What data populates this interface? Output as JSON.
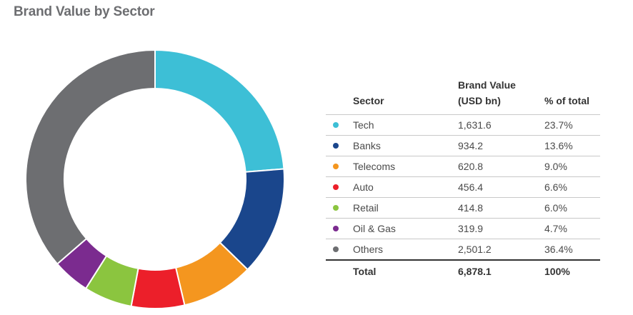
{
  "title": "Brand Value by Sector",
  "table": {
    "header_sector": "Sector",
    "header_value_line1": "Brand Value",
    "header_value_line2": "(USD bn)",
    "header_pct": "% of total",
    "rows": [
      {
        "name": "Tech",
        "value": "1,631.6",
        "pct": "23.7%",
        "color": "#3dbfd6"
      },
      {
        "name": "Banks",
        "value": "934.2",
        "pct": "13.6%",
        "color": "#1a468c"
      },
      {
        "name": "Telecoms",
        "value": "620.8",
        "pct": "9.0%",
        "color": "#f4961f"
      },
      {
        "name": "Auto",
        "value": "456.4",
        "pct": "6.6%",
        "color": "#ec1f2a"
      },
      {
        "name": "Retail",
        "value": "414.8",
        "pct": "6.0%",
        "color": "#8bc53f"
      },
      {
        "name": "Oil & Gas",
        "value": "319.9",
        "pct": "4.7%",
        "color": "#7b2b8f"
      },
      {
        "name": "Others",
        "value": "2,501.2",
        "pct": "36.4%",
        "color": "#6d6e71"
      }
    ],
    "total": {
      "name": "Total",
      "value": "6,878.1",
      "pct": "100%"
    }
  },
  "chart_data": {
    "type": "pie",
    "variant": "donut",
    "categories": [
      "Tech",
      "Banks",
      "Telecoms",
      "Auto",
      "Retail",
      "Oil & Gas",
      "Others"
    ],
    "values": [
      1631.6,
      934.2,
      620.8,
      456.4,
      414.8,
      319.9,
      2501.2
    ],
    "percentages": [
      23.7,
      13.6,
      9.0,
      6.6,
      6.0,
      4.7,
      36.4
    ],
    "colors": [
      "#3dbfd6",
      "#1a468c",
      "#f4961f",
      "#ec1f2a",
      "#8bc53f",
      "#7b2b8f",
      "#6d6e71"
    ],
    "title": "Brand Value by Sector",
    "start": "12 o'clock",
    "direction": "clockwise"
  }
}
